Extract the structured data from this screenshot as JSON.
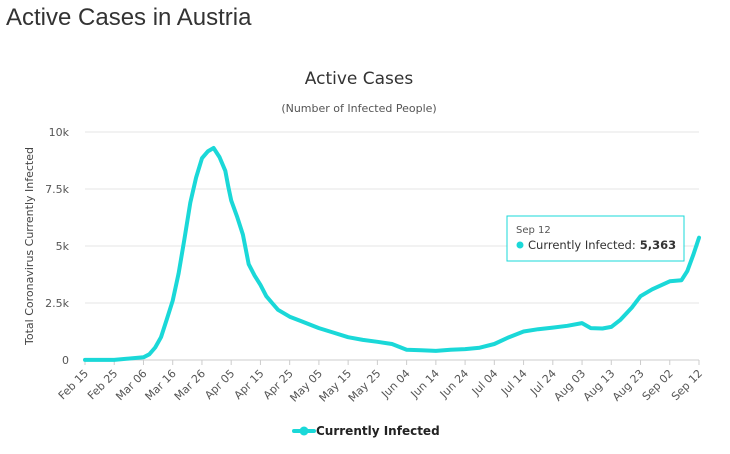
{
  "page": {
    "title": "Active Cases in Austria"
  },
  "chart_data": {
    "type": "line",
    "title": "Active Cases",
    "subtitle": "(Number of Infected People)",
    "ylabel": "Total Coronavirus Currently Infected",
    "xlabel": "",
    "ylim": [
      0,
      10000
    ],
    "y_ticks": [
      0,
      2500,
      5000,
      7500,
      10000
    ],
    "y_tick_labels": [
      "0",
      "2.5k",
      "5k",
      "7.5k",
      "10k"
    ],
    "x_tick_labels": [
      "Feb 15",
      "Feb 25",
      "Mar 06",
      "Mar 16",
      "Mar 26",
      "Apr 05",
      "Apr 15",
      "Apr 25",
      "May 05",
      "May 15",
      "May 25",
      "Jun 04",
      "Jun 14",
      "Jun 24",
      "Jul 04",
      "Jul 14",
      "Jul 24",
      "Aug 03",
      "Aug 13",
      "Aug 23",
      "Sep 02",
      "Sep 12"
    ],
    "grid": true,
    "legend": "bottom-center",
    "colors": {
      "series": "#1ad8d8",
      "grid": "#e6e6e6"
    },
    "series": [
      {
        "name": "Currently Infected",
        "x": [
          "Feb 15",
          "Feb 25",
          "Mar 06",
          "Mar 08",
          "Mar 10",
          "Mar 12",
          "Mar 14",
          "Mar 16",
          "Mar 18",
          "Mar 20",
          "Mar 22",
          "Mar 24",
          "Mar 26",
          "Mar 28",
          "Mar 30",
          "Apr 01",
          "Apr 03",
          "Apr 04",
          "Apr 05",
          "Apr 07",
          "Apr 09",
          "Apr 11",
          "Apr 13",
          "Apr 15",
          "Apr 17",
          "Apr 19",
          "Apr 21",
          "Apr 25",
          "Apr 29",
          "May 05",
          "May 10",
          "May 15",
          "May 20",
          "May 25",
          "May 30",
          "Jun 04",
          "Jun 09",
          "Jun 14",
          "Jun 19",
          "Jun 24",
          "Jun 29",
          "Jul 04",
          "Jul 09",
          "Jul 14",
          "Jul 19",
          "Jul 24",
          "Jul 29",
          "Aug 03",
          "Aug 06",
          "Aug 10",
          "Aug 13",
          "Aug 16",
          "Aug 20",
          "Aug 23",
          "Aug 27",
          "Sep 02",
          "Sep 06",
          "Sep 08",
          "Sep 10",
          "Sep 12"
        ],
        "values": [
          3,
          5,
          120,
          250,
          550,
          1000,
          1800,
          2600,
          3800,
          5300,
          6900,
          8000,
          8850,
          9150,
          9300,
          8900,
          8300,
          7600,
          7000,
          6300,
          5500,
          4200,
          3700,
          3300,
          2800,
          2500,
          2200,
          1900,
          1700,
          1400,
          1200,
          1000,
          880,
          800,
          700,
          450,
          430,
          400,
          450,
          480,
          540,
          700,
          1000,
          1250,
          1350,
          1420,
          1500,
          1620,
          1400,
          1380,
          1450,
          1750,
          2300,
          2800,
          3100,
          3450,
          3500,
          3900,
          4600,
          5363
        ]
      }
    ],
    "tooltip": {
      "date": "Sep 12",
      "label": "Currently Infected:",
      "value": "5,363"
    }
  }
}
